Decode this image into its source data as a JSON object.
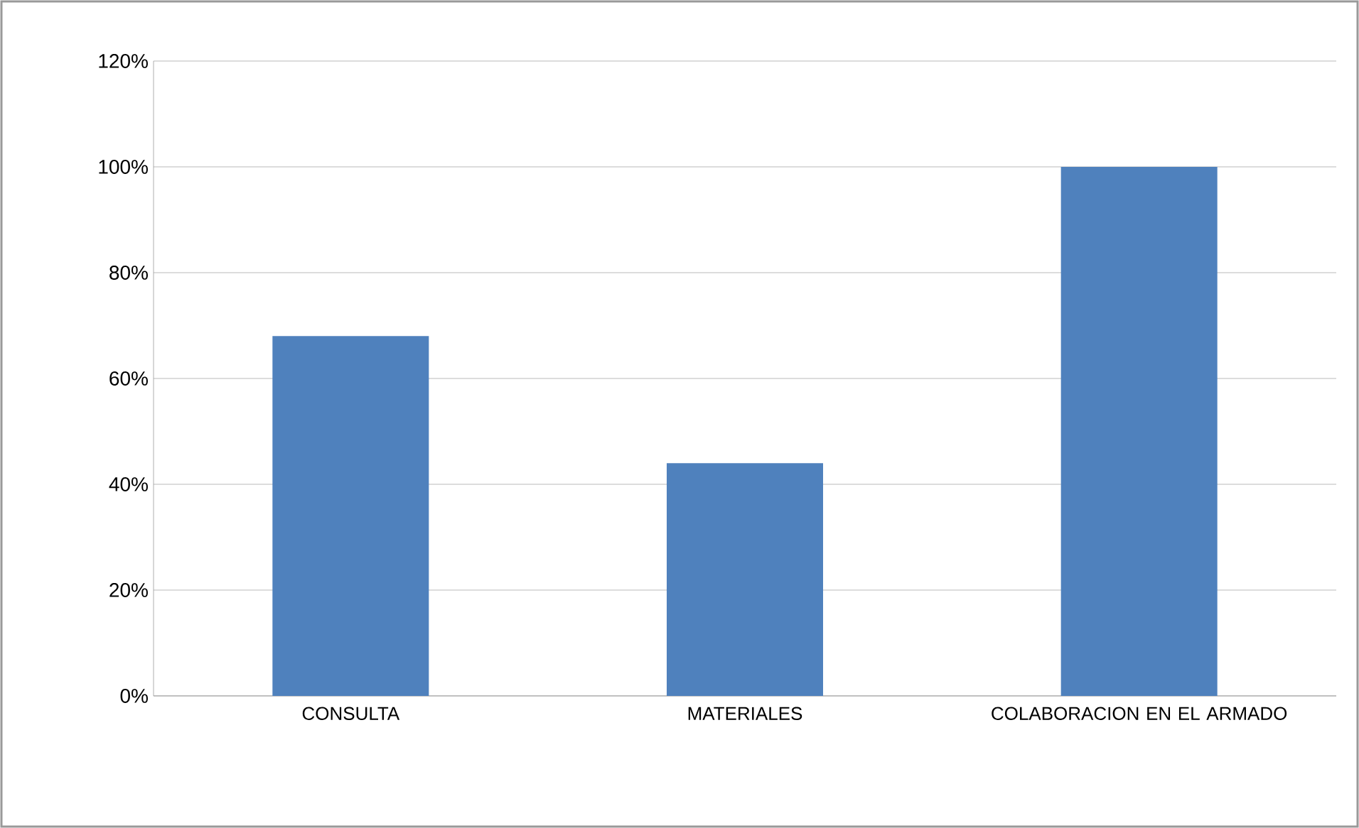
{
  "chart_data": {
    "type": "bar",
    "categories": [
      "CONSULTA",
      "MATERIALES",
      "COLABORACION EN EL ARMADO"
    ],
    "values": [
      68,
      44,
      100
    ],
    "color": "#4f81bd",
    "ylim": [
      0,
      120
    ],
    "yticks": [
      {
        "value": 0,
        "label": "0%"
      },
      {
        "value": 20,
        "label": "20%"
      },
      {
        "value": 40,
        "label": "40%"
      },
      {
        "value": 60,
        "label": "60%"
      },
      {
        "value": 80,
        "label": "80%"
      },
      {
        "value": 100,
        "label": "100%"
      },
      {
        "value": 120,
        "label": "120%"
      }
    ],
    "grid": "y"
  }
}
